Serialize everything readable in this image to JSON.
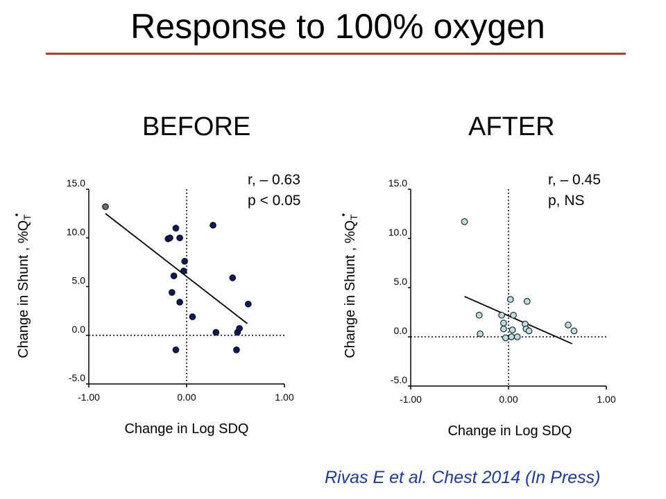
{
  "slide": {
    "title": "Response to 100% oxygen",
    "citation": "Rivas E et al. Chest 2014 (In Press)",
    "accent_color": "#c0392b",
    "citation_color": "#1a3b9e"
  },
  "chart_data": [
    {
      "type": "scatter",
      "heading": "BEFORE",
      "xlabel": "Change in Log SDQ",
      "ylabel": "Change in Shunt , %",
      "ylabel_symbol": "Q",
      "ylabel_subscript": "T",
      "xlim": [
        -1.0,
        1.0
      ],
      "ylim": [
        -5.0,
        15.0
      ],
      "x_ticks": [
        "-1.00",
        "0.00",
        "1.00"
      ],
      "y_ticks": [
        "15.0",
        "10.0",
        "5.0",
        "0.0",
        "-5.0"
      ],
      "annotation": [
        "r, – 0.63",
        "p < 0.05"
      ],
      "point_color": "#0d1a5c",
      "highlight_color": "#6b6b6b",
      "points": [
        {
          "x": -0.83,
          "y": 13.2,
          "highlight": true
        },
        {
          "x": -0.19,
          "y": 9.9
        },
        {
          "x": -0.17,
          "y": 10.0
        },
        {
          "x": -0.11,
          "y": 11.0
        },
        {
          "x": -0.07,
          "y": 10.0
        },
        {
          "x": 0.27,
          "y": 11.3
        },
        {
          "x": -0.02,
          "y": 7.6
        },
        {
          "x": -0.03,
          "y": 6.6
        },
        {
          "x": -0.13,
          "y": 6.1
        },
        {
          "x": 0.47,
          "y": 5.9
        },
        {
          "x": -0.15,
          "y": 4.4
        },
        {
          "x": -0.07,
          "y": 3.4
        },
        {
          "x": 0.63,
          "y": 3.2
        },
        {
          "x": 0.06,
          "y": 1.9
        },
        {
          "x": 0.3,
          "y": 0.3
        },
        {
          "x": 0.52,
          "y": 0.3
        },
        {
          "x": 0.54,
          "y": 0.7
        },
        {
          "x": -0.11,
          "y": -1.5
        },
        {
          "x": 0.51,
          "y": -1.5
        }
      ],
      "trendline": {
        "x": [
          -0.83,
          0.62
        ],
        "y": [
          12.5,
          1.2
        ]
      }
    },
    {
      "type": "scatter",
      "heading": "AFTER",
      "xlabel": "Change in Log SDQ",
      "ylabel": "Change in Shunt , %",
      "ylabel_symbol": "Q",
      "ylabel_subscript": "T",
      "xlim": [
        -1.0,
        1.0
      ],
      "ylim": [
        -5.0,
        15.0
      ],
      "x_ticks": [
        "-1.00",
        "0.00",
        "1.00"
      ],
      "y_ticks": [
        "15.0",
        "10.0",
        "5.0",
        "0.0",
        "-5.0"
      ],
      "annotation": [
        "r, – 0.45",
        "p, NS"
      ],
      "point_color": "#b9dde3",
      "points": [
        {
          "x": -0.45,
          "y": 11.7
        },
        {
          "x": 0.02,
          "y": 3.8
        },
        {
          "x": 0.19,
          "y": 3.6
        },
        {
          "x": -0.3,
          "y": 2.2
        },
        {
          "x": -0.07,
          "y": 2.2
        },
        {
          "x": 0.05,
          "y": 2.2
        },
        {
          "x": -0.05,
          "y": 1.4
        },
        {
          "x": 0.17,
          "y": 1.3
        },
        {
          "x": 0.61,
          "y": 1.2
        },
        {
          "x": -0.05,
          "y": 0.8
        },
        {
          "x": 0.04,
          "y": 0.7
        },
        {
          "x": 0.18,
          "y": 0.8
        },
        {
          "x": 0.21,
          "y": 0.6
        },
        {
          "x": 0.67,
          "y": 0.6
        },
        {
          "x": -0.29,
          "y": 0.3
        },
        {
          "x": -0.03,
          "y": -0.1
        },
        {
          "x": 0.03,
          "y": 0.0
        },
        {
          "x": 0.09,
          "y": -0.0
        }
      ],
      "trendline": {
        "x": [
          -0.45,
          0.65
        ],
        "y": [
          4.1,
          -0.7
        ]
      }
    }
  ]
}
